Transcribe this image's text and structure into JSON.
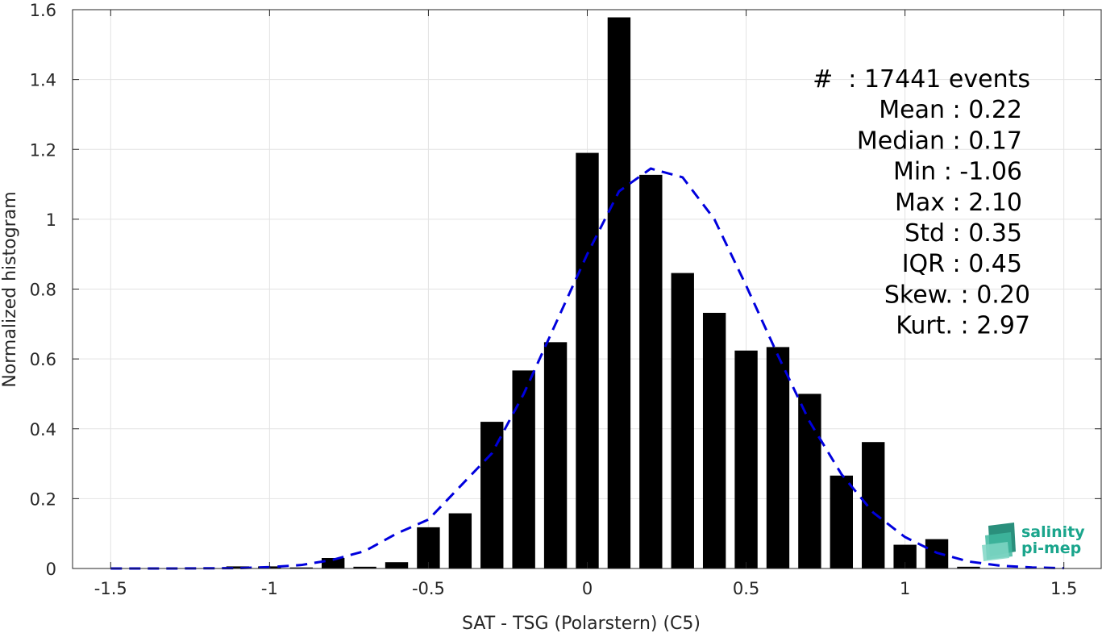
{
  "chart_data": {
    "type": "bar",
    "xlabel": "SAT - TSG (Polarstern) (C5)",
    "ylabel": "Normalized histogram",
    "xlim": [
      -1.62,
      1.62
    ],
    "ylim": [
      0,
      1.6
    ],
    "xticks": [
      -1.5,
      -1,
      -0.5,
      0,
      0.5,
      1,
      1.5
    ],
    "xtick_labels": [
      "-1.5",
      "-1",
      "-0.5",
      "0",
      "0.5",
      "1",
      "1.5"
    ],
    "yticks": [
      0,
      0.2,
      0.4,
      0.6,
      0.8,
      1,
      1.2,
      1.4,
      1.6
    ],
    "ytick_labels": [
      "0",
      "0.2",
      "0.4",
      "0.6",
      "0.8",
      "1",
      "1.2",
      "1.4",
      "1.6"
    ],
    "grid": true,
    "bar_color": "#000000",
    "bars": {
      "x": [
        -1.1,
        -1.0,
        -0.9,
        -0.8,
        -0.7,
        -0.6,
        -0.5,
        -0.4,
        -0.3,
        -0.2,
        -0.1,
        0.0,
        0.1,
        0.2,
        0.3,
        0.4,
        0.5,
        0.6,
        0.7,
        0.8,
        0.9,
        1.0,
        1.1,
        1.2
      ],
      "values": [
        0.006,
        0.006,
        0.003,
        0.03,
        0.005,
        0.018,
        0.118,
        0.158,
        0.42,
        0.567,
        0.648,
        1.19,
        1.578,
        1.127,
        0.846,
        0.732,
        0.624,
        0.634,
        0.5,
        0.266,
        0.362,
        0.068,
        0.084,
        0.005
      ]
    },
    "fit_curve": {
      "style": "dashed",
      "color": "#0000dd",
      "x": [
        -1.5,
        -1.3,
        -1.1,
        -1.0,
        -0.9,
        -0.8,
        -0.7,
        -0.6,
        -0.5,
        -0.4,
        -0.3,
        -0.2,
        -0.1,
        0.0,
        0.1,
        0.2,
        0.3,
        0.4,
        0.5,
        0.6,
        0.7,
        0.8,
        0.9,
        1.0,
        1.1,
        1.2,
        1.3,
        1.4,
        1.5
      ],
      "values": [
        0.0,
        0.0,
        0.001,
        0.004,
        0.01,
        0.025,
        0.05,
        0.1,
        0.14,
        0.235,
        0.33,
        0.5,
        0.7,
        0.9,
        1.08,
        1.145,
        1.12,
        1.0,
        0.81,
        0.61,
        0.42,
        0.27,
        0.16,
        0.09,
        0.045,
        0.02,
        0.008,
        0.003,
        0.001
      ]
    },
    "stats_box": {
      "placement": "top-right",
      "lines": [
        "#  : 17441 events",
        "Mean : 0.22",
        "Median : 0.17",
        "Min : -1.06",
        "Max : 2.10",
        "Std : 0.35",
        "IQR : 0.45",
        "Skew. : 0.20",
        "Kurt. : 2.97"
      ]
    }
  },
  "logo": {
    "line1": "salinity",
    "line2": "pi-mep",
    "color": "#1aa58c",
    "icon": "wave-layers-icon"
  }
}
